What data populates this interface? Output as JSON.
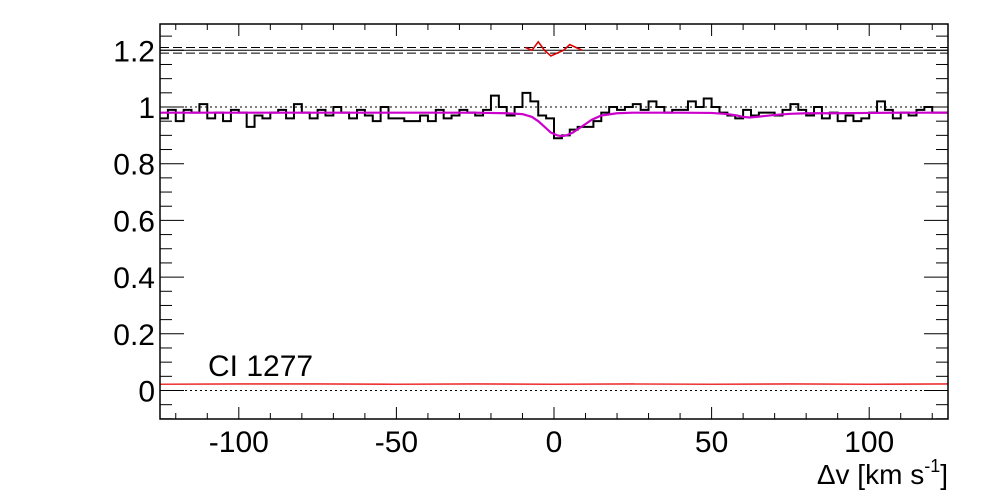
{
  "chart_data": {
    "type": "line",
    "title": "",
    "xlabel": "Δv [km s-1]",
    "xlabel_base": "Δv [km s",
    "xlabel_sup": "-1",
    "xlabel_close": "]",
    "ylabel": "",
    "annotation": "CI 1277",
    "xlim": [
      -125,
      125
    ],
    "ylim": [
      -0.1,
      1.3
    ],
    "xticks": [
      -100,
      -50,
      0,
      50,
      100
    ],
    "xtick_labels": [
      "-100",
      "-50",
      "0",
      "50",
      "100"
    ],
    "yticks": [
      0,
      0.2,
      0.4,
      0.6,
      0.8,
      1,
      1.2
    ],
    "ytick_labels": [
      "0",
      "0.2",
      "0.4",
      "0.6",
      "0.8",
      "1",
      "1.2"
    ],
    "grid": false,
    "colors": {
      "flux": "#000000",
      "model": "#cc00cc",
      "residual": "#dd0000",
      "error": "#ee3333",
      "reference": "#000000"
    },
    "reference_lines": [
      {
        "name": "continuum",
        "y": 1.0,
        "style": "dotted"
      },
      {
        "name": "zero",
        "y": 0.0,
        "style": "dotted"
      },
      {
        "name": "residual-center",
        "y": 1.2,
        "style": "solid"
      },
      {
        "name": "residual-upper",
        "y": 1.21,
        "style": "dashed"
      },
      {
        "name": "residual-lower",
        "y": 1.19,
        "style": "dashed"
      }
    ],
    "series": [
      {
        "type": "step",
        "x": [
          -125,
          -122.5,
          -120,
          -117.5,
          -115,
          -112.5,
          -110,
          -107.5,
          -105,
          -102.5,
          -100,
          -97.5,
          -95,
          -92.5,
          -90,
          -87.5,
          -85,
          -82.5,
          -80,
          -77.5,
          -75,
          -72.5,
          -70,
          -67.5,
          -65,
          -62.5,
          -60,
          -57.5,
          -55,
          -52.5,
          -50,
          -47.5,
          -45,
          -42.5,
          -40,
          -37.5,
          -35,
          -32.5,
          -30,
          -27.5,
          -25,
          -22.5,
          -20,
          -17.5,
          -15,
          -12.5,
          -10,
          -7.5,
          -5,
          -2.5,
          0,
          2.5,
          5,
          7.5,
          10,
          12.5,
          15,
          17.5,
          20,
          22.5,
          25,
          27.5,
          30,
          32.5,
          35,
          37.5,
          40,
          42.5,
          45,
          47.5,
          50,
          52.5,
          55,
          57.5,
          60,
          62.5,
          65,
          67.5,
          70,
          72.5,
          75,
          77.5,
          80,
          82.5,
          85,
          87.5,
          90,
          92.5,
          95,
          97.5,
          100,
          102.5,
          105,
          107.5,
          110,
          112.5,
          115,
          117.5,
          120,
          122.5
        ],
        "values": [
          0.96,
          0.99,
          0.95,
          0.99,
          0.98,
          1.01,
          0.96,
          0.98,
          0.95,
          0.99,
          0.98,
          0.93,
          0.97,
          0.96,
          0.98,
          0.99,
          0.96,
          1.01,
          0.98,
          0.96,
          0.99,
          0.97,
          1.0,
          0.98,
          0.96,
          0.99,
          0.97,
          0.95,
          1.0,
          0.96,
          0.96,
          0.95,
          0.95,
          0.97,
          0.95,
          0.99,
          0.96,
          0.97,
          0.99,
          0.98,
          0.97,
          0.99,
          1.04,
          1.0,
          0.97,
          1.0,
          1.05,
          1.02,
          0.97,
          0.96,
          0.89,
          0.9,
          0.92,
          0.93,
          0.93,
          0.95,
          0.98,
          1.0,
          0.99,
          1.0,
          1.01,
          0.99,
          1.02,
          1.0,
          0.98,
          0.99,
          0.99,
          1.02,
          1.0,
          1.03,
          1.0,
          0.98,
          0.97,
          0.96,
          0.99,
          0.97,
          0.98,
          0.98,
          0.97,
          0.99,
          1.01,
          0.99,
          0.97,
          1.0,
          0.96,
          0.98,
          0.95,
          0.97,
          0.95,
          0.96,
          0.98,
          1.02,
          0.99,
          0.96,
          0.98,
          0.97,
          0.99,
          1.0,
          0.98,
          0.98
        ]
      },
      {
        "type": "line",
        "x": [
          -125,
          -100,
          -75,
          -50,
          -25,
          -15,
          -10,
          -7,
          -5,
          -3,
          -1,
          0,
          1,
          2,
          3,
          4,
          5,
          6,
          8,
          10,
          12,
          15,
          20,
          25,
          30,
          40,
          50,
          55,
          58,
          60,
          62,
          65,
          70,
          75,
          80,
          90,
          100,
          110,
          125
        ],
        "values": [
          0.98,
          0.98,
          0.98,
          0.98,
          0.98,
          0.978,
          0.975,
          0.965,
          0.95,
          0.93,
          0.91,
          0.905,
          0.9,
          0.898,
          0.898,
          0.9,
          0.905,
          0.91,
          0.925,
          0.94,
          0.955,
          0.97,
          0.978,
          0.98,
          0.98,
          0.98,
          0.979,
          0.975,
          0.97,
          0.965,
          0.963,
          0.966,
          0.972,
          0.976,
          0.978,
          0.978,
          0.979,
          0.98,
          0.98
        ]
      },
      {
        "type": "line",
        "x": [
          -9,
          -7,
          -5,
          -3,
          -1,
          1,
          3,
          5,
          7,
          9
        ],
        "values": [
          1.21,
          1.2,
          1.23,
          1.2,
          1.18,
          1.19,
          1.2,
          1.22,
          1.21,
          1.2
        ]
      },
      {
        "type": "line",
        "x": [
          -125,
          -100,
          -75,
          -50,
          -25,
          0,
          25,
          50,
          75,
          100,
          125
        ],
        "values": [
          0.022,
          0.023,
          0.023,
          0.022,
          0.023,
          0.022,
          0.023,
          0.022,
          0.023,
          0.022,
          0.023
        ]
      }
    ]
  }
}
